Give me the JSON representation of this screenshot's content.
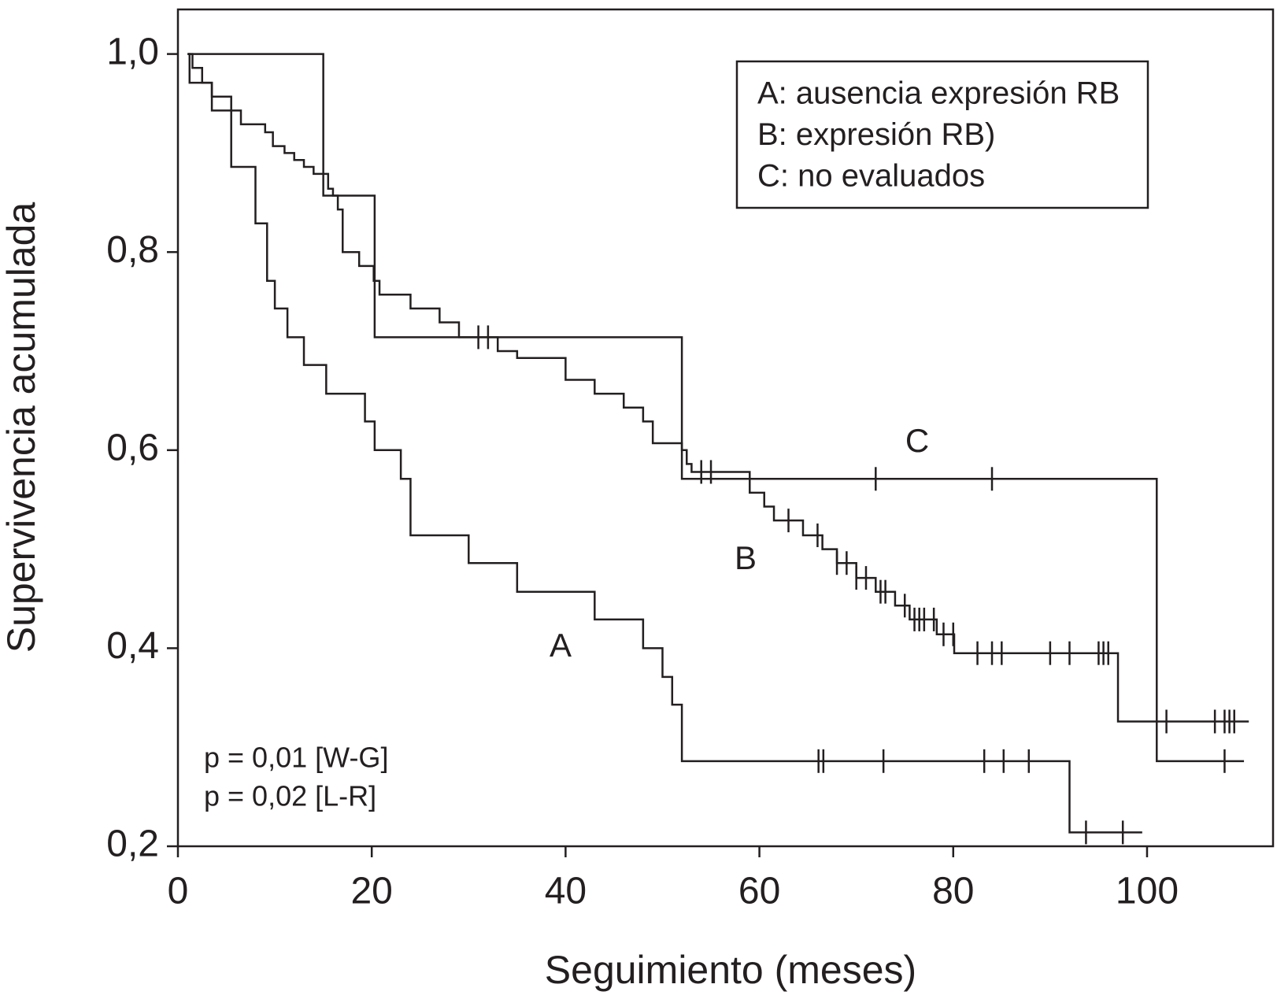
{
  "chart_data": {
    "type": "km",
    "xlabel": "Seguimiento (meses)",
    "ylabel": "Supervivencia acumulada",
    "xlim": [
      0,
      113
    ],
    "ylim": [
      0.2,
      1.045
    ],
    "xticks": [
      0,
      20,
      40,
      60,
      80,
      100
    ],
    "yticks": [
      {
        "value": 0.2,
        "label": "0,2"
      },
      {
        "value": 0.4,
        "label": "0,4"
      },
      {
        "value": 0.6,
        "label": "0,6"
      },
      {
        "value": 0.8,
        "label": "0,8"
      },
      {
        "value": 1.0,
        "label": "1,0"
      }
    ],
    "legend": [
      "A: ausencia expresión RB",
      "B: expresión RB)",
      "C: no evaluados"
    ],
    "annotations": [
      "p = 0,01 [W-G]",
      "p = 0,02 [L-R]"
    ],
    "color": "#231f20",
    "series": [
      {
        "name": "A",
        "x": [
          1,
          1.2,
          3.5,
          5.5,
          8,
          9.2,
          10,
          11.3,
          13,
          15.3,
          19.3,
          20.3,
          23,
          24,
          30,
          35,
          43,
          48,
          50,
          51,
          52,
          92,
          99.5
        ],
        "values": [
          1.0,
          0.971,
          0.943,
          0.886,
          0.829,
          0.771,
          0.743,
          0.714,
          0.686,
          0.657,
          0.629,
          0.6,
          0.571,
          0.514,
          0.486,
          0.457,
          0.429,
          0.4,
          0.371,
          0.343,
          0.286,
          0.214,
          0.214
        ],
        "censored": [
          66.1,
          66.6,
          72.8,
          83.2,
          85.2,
          87.8,
          93.7,
          97.5
        ]
      },
      {
        "name": "B",
        "x": [
          1,
          1.5,
          2.5,
          3.5,
          5.5,
          6.5,
          9,
          9.8,
          11,
          12,
          13,
          14,
          15.5,
          16,
          16.5,
          17,
          18.7,
          20.2,
          20.8,
          24,
          27,
          29,
          33,
          35,
          40,
          43,
          46,
          48,
          49,
          52,
          52.5,
          53,
          59,
          60.5,
          61.5,
          64.5,
          66.5,
          68,
          70,
          72,
          74,
          75.5,
          78.3,
          80.1,
          97,
          110.5
        ],
        "values": [
          1.0,
          0.986,
          0.971,
          0.957,
          0.943,
          0.929,
          0.921,
          0.907,
          0.9,
          0.893,
          0.886,
          0.879,
          0.864,
          0.857,
          0.843,
          0.8,
          0.786,
          0.771,
          0.757,
          0.743,
          0.729,
          0.714,
          0.7,
          0.693,
          0.671,
          0.657,
          0.643,
          0.629,
          0.607,
          0.6,
          0.586,
          0.578,
          0.557,
          0.543,
          0.529,
          0.514,
          0.5,
          0.486,
          0.471,
          0.457,
          0.443,
          0.429,
          0.414,
          0.395,
          0.326,
          0.326
        ],
        "censored": [
          31,
          32,
          54,
          55,
          63,
          66,
          68,
          69,
          70,
          71,
          72.5,
          73,
          75,
          76,
          76.5,
          77,
          78,
          79,
          80,
          82.5,
          84,
          85,
          90,
          92,
          95,
          95.5,
          96,
          102,
          107,
          108,
          108.5,
          109
        ]
      },
      {
        "name": "C",
        "x": [
          1,
          15,
          20.3,
          52,
          101,
          110
        ],
        "values": [
          1.0,
          0.857,
          0.714,
          0.571,
          0.286,
          0.286
        ],
        "censored": [
          72,
          84,
          108
        ]
      }
    ]
  }
}
